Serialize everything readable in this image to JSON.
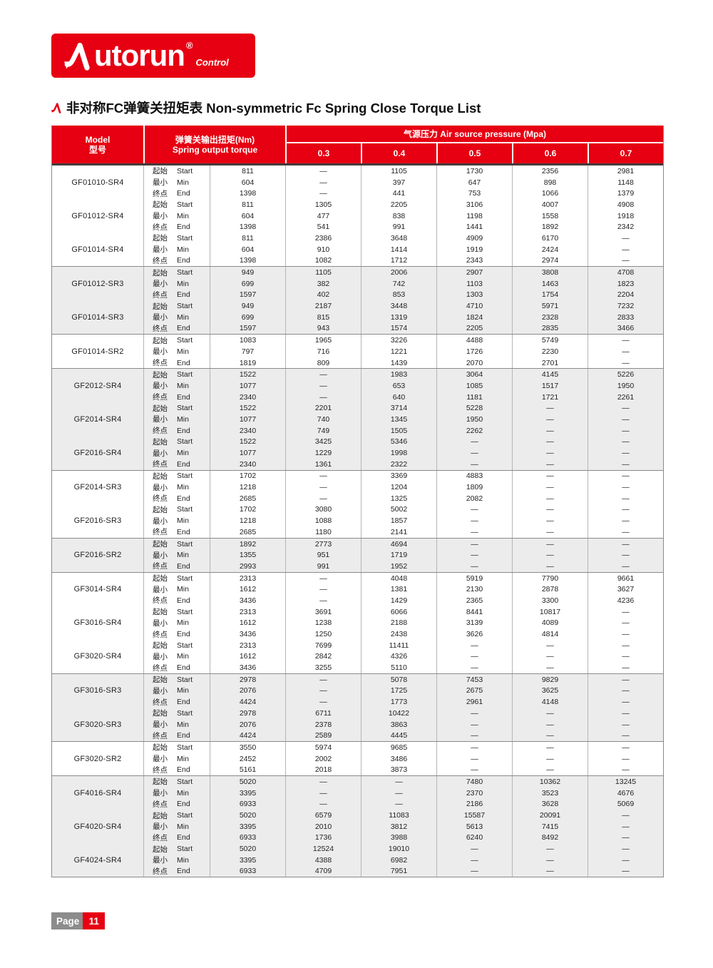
{
  "colors": {
    "brand_red": "#e60012",
    "section_shade": "#ececec",
    "footer_gray": "#8c8c8c"
  },
  "logo": {
    "brand": "Autorun",
    "brand_rest": "utorun",
    "registered": "®",
    "sub": "Control"
  },
  "title": {
    "text": "非对称FC弹簧关扭矩表 Non-symmetric Fc Spring Close Torque List"
  },
  "table": {
    "header": {
      "model_en": "Model",
      "model_zh": "型号",
      "torque_zh": "弹簧关输出扭矩(Nm)",
      "torque_en": "Spring output torque",
      "pressure_title": "气源压力 Air source pressure (Mpa)",
      "pressure_values": [
        "0.3",
        "0.4",
        "0.5",
        "0.6",
        "0.7"
      ]
    },
    "row_labels": [
      {
        "zh": "起始",
        "en": "Start"
      },
      {
        "zh": "最小",
        "en": "Min"
      },
      {
        "zh": "终点",
        "en": "End"
      }
    ],
    "sections": [
      {
        "shaded": false,
        "models": [
          {
            "name": "GF01010-SR4",
            "rows": [
              {
                "torque": "811",
                "values": [
                  "—",
                  "1105",
                  "1730",
                  "2356",
                  "2981"
                ]
              },
              {
                "torque": "604",
                "values": [
                  "—",
                  "397",
                  "647",
                  "898",
                  "1148"
                ]
              },
              {
                "torque": "1398",
                "values": [
                  "—",
                  "441",
                  "753",
                  "1066",
                  "1379"
                ]
              }
            ]
          },
          {
            "name": "GF01012-SR4",
            "rows": [
              {
                "torque": "811",
                "values": [
                  "1305",
                  "2205",
                  "3106",
                  "4007",
                  "4908"
                ]
              },
              {
                "torque": "604",
                "values": [
                  "477",
                  "838",
                  "1198",
                  "1558",
                  "1918"
                ]
              },
              {
                "torque": "1398",
                "values": [
                  "541",
                  "991",
                  "1441",
                  "1892",
                  "2342"
                ]
              }
            ]
          },
          {
            "name": "GF01014-SR4",
            "rows": [
              {
                "torque": "811",
                "values": [
                  "2386",
                  "3648",
                  "4909",
                  "6170",
                  "—"
                ]
              },
              {
                "torque": "604",
                "values": [
                  "910",
                  "1414",
                  "1919",
                  "2424",
                  "—"
                ]
              },
              {
                "torque": "1398",
                "values": [
                  "1082",
                  "1712",
                  "2343",
                  "2974",
                  "—"
                ]
              }
            ]
          }
        ]
      },
      {
        "shaded": true,
        "models": [
          {
            "name": "GF01012-SR3",
            "rows": [
              {
                "torque": "949",
                "values": [
                  "1105",
                  "2006",
                  "2907",
                  "3808",
                  "4708"
                ]
              },
              {
                "torque": "699",
                "values": [
                  "382",
                  "742",
                  "1103",
                  "1463",
                  "1823"
                ]
              },
              {
                "torque": "1597",
                "values": [
                  "402",
                  "853",
                  "1303",
                  "1754",
                  "2204"
                ]
              }
            ]
          },
          {
            "name": "GF01014-SR3",
            "rows": [
              {
                "torque": "949",
                "values": [
                  "2187",
                  "3448",
                  "4710",
                  "5971",
                  "7232"
                ]
              },
              {
                "torque": "699",
                "values": [
                  "815",
                  "1319",
                  "1824",
                  "2328",
                  "2833"
                ]
              },
              {
                "torque": "1597",
                "values": [
                  "943",
                  "1574",
                  "2205",
                  "2835",
                  "3466"
                ]
              }
            ]
          }
        ]
      },
      {
        "shaded": false,
        "models": [
          {
            "name": "GF01014-SR2",
            "rows": [
              {
                "torque": "1083",
                "values": [
                  "1965",
                  "3226",
                  "4488",
                  "5749",
                  "—"
                ]
              },
              {
                "torque": "797",
                "values": [
                  "716",
                  "1221",
                  "1726",
                  "2230",
                  "—"
                ]
              },
              {
                "torque": "1819",
                "values": [
                  "809",
                  "1439",
                  "2070",
                  "2701",
                  "—"
                ]
              }
            ]
          }
        ]
      },
      {
        "shaded": true,
        "models": [
          {
            "name": "GF2012-SR4",
            "rows": [
              {
                "torque": "1522",
                "values": [
                  "—",
                  "1983",
                  "3064",
                  "4145",
                  "5226"
                ]
              },
              {
                "torque": "1077",
                "values": [
                  "—",
                  "653",
                  "1085",
                  "1517",
                  "1950"
                ]
              },
              {
                "torque": "2340",
                "values": [
                  "—",
                  "640",
                  "1181",
                  "1721",
                  "2261"
                ]
              }
            ]
          },
          {
            "name": "GF2014-SR4",
            "rows": [
              {
                "torque": "1522",
                "values": [
                  "2201",
                  "3714",
                  "5228",
                  "—",
                  "—"
                ]
              },
              {
                "torque": "1077",
                "values": [
                  "740",
                  "1345",
                  "1950",
                  "—",
                  "—"
                ]
              },
              {
                "torque": "2340",
                "values": [
                  "749",
                  "1505",
                  "2262",
                  "—",
                  "—"
                ]
              }
            ]
          },
          {
            "name": "GF2016-SR4",
            "rows": [
              {
                "torque": "1522",
                "values": [
                  "3425",
                  "5346",
                  "—",
                  "—",
                  "—"
                ]
              },
              {
                "torque": "1077",
                "values": [
                  "1229",
                  "1998",
                  "—",
                  "—",
                  "—"
                ]
              },
              {
                "torque": "2340",
                "values": [
                  "1361",
                  "2322",
                  "—",
                  "—",
                  "—"
                ]
              }
            ]
          }
        ]
      },
      {
        "shaded": false,
        "models": [
          {
            "name": "GF2014-SR3",
            "rows": [
              {
                "torque": "1702",
                "values": [
                  "—",
                  "3369",
                  "4883",
                  "—",
                  "—"
                ]
              },
              {
                "torque": "1218",
                "values": [
                  "—",
                  "1204",
                  "1809",
                  "—",
                  "—"
                ]
              },
              {
                "torque": "2685",
                "values": [
                  "—",
                  "1325",
                  "2082",
                  "—",
                  "—"
                ]
              }
            ]
          },
          {
            "name": "GF2016-SR3",
            "rows": [
              {
                "torque": "1702",
                "values": [
                  "3080",
                  "5002",
                  "—",
                  "—",
                  "—"
                ]
              },
              {
                "torque": "1218",
                "values": [
                  "1088",
                  "1857",
                  "—",
                  "—",
                  "—"
                ]
              },
              {
                "torque": "2685",
                "values": [
                  "1180",
                  "2141",
                  "—",
                  "—",
                  "—"
                ]
              }
            ]
          }
        ]
      },
      {
        "shaded": true,
        "models": [
          {
            "name": "GF2016-SR2",
            "rows": [
              {
                "torque": "1892",
                "values": [
                  "2773",
                  "4694",
                  "—",
                  "—",
                  "—"
                ]
              },
              {
                "torque": "1355",
                "values": [
                  "951",
                  "1719",
                  "—",
                  "—",
                  "—"
                ]
              },
              {
                "torque": "2993",
                "values": [
                  "991",
                  "1952",
                  "—",
                  "—",
                  "—"
                ]
              }
            ]
          }
        ]
      },
      {
        "shaded": false,
        "models": [
          {
            "name": "GF3014-SR4",
            "rows": [
              {
                "torque": "2313",
                "values": [
                  "—",
                  "4048",
                  "5919",
                  "7790",
                  "9661"
                ]
              },
              {
                "torque": "1612",
                "values": [
                  "—",
                  "1381",
                  "2130",
                  "2878",
                  "3627"
                ]
              },
              {
                "torque": "3436",
                "values": [
                  "—",
                  "1429",
                  "2365",
                  "3300",
                  "4236"
                ]
              }
            ]
          },
          {
            "name": "GF3016-SR4",
            "rows": [
              {
                "torque": "2313",
                "values": [
                  "3691",
                  "6066",
                  "8441",
                  "10817",
                  "—"
                ]
              },
              {
                "torque": "1612",
                "values": [
                  "1238",
                  "2188",
                  "3139",
                  "4089",
                  "—"
                ]
              },
              {
                "torque": "3436",
                "values": [
                  "1250",
                  "2438",
                  "3626",
                  "4814",
                  "—"
                ]
              }
            ]
          },
          {
            "name": "GF3020-SR4",
            "rows": [
              {
                "torque": "2313",
                "values": [
                  "7699",
                  "11411",
                  "—",
                  "—",
                  "—"
                ]
              },
              {
                "torque": "1612",
                "values": [
                  "2842",
                  "4326",
                  "—",
                  "—",
                  "—"
                ]
              },
              {
                "torque": "3436",
                "values": [
                  "3255",
                  "5110",
                  "—",
                  "—",
                  "—"
                ]
              }
            ]
          }
        ]
      },
      {
        "shaded": true,
        "models": [
          {
            "name": "GF3016-SR3",
            "rows": [
              {
                "torque": "2978",
                "values": [
                  "—",
                  "5078",
                  "7453",
                  "9829",
                  "—"
                ]
              },
              {
                "torque": "2076",
                "values": [
                  "—",
                  "1725",
                  "2675",
                  "3625",
                  "—"
                ]
              },
              {
                "torque": "4424",
                "values": [
                  "—",
                  "1773",
                  "2961",
                  "4148",
                  "—"
                ]
              }
            ]
          },
          {
            "name": "GF3020-SR3",
            "rows": [
              {
                "torque": "2978",
                "values": [
                  "6711",
                  "10422",
                  "—",
                  "—",
                  "—"
                ]
              },
              {
                "torque": "2076",
                "values": [
                  "2378",
                  "3863",
                  "—",
                  "—",
                  "—"
                ]
              },
              {
                "torque": "4424",
                "values": [
                  "2589",
                  "4445",
                  "—",
                  "—",
                  "—"
                ]
              }
            ]
          }
        ]
      },
      {
        "shaded": false,
        "models": [
          {
            "name": "GF3020-SR2",
            "rows": [
              {
                "torque": "3550",
                "values": [
                  "5974",
                  "9685",
                  "—",
                  "—",
                  "—"
                ]
              },
              {
                "torque": "2452",
                "values": [
                  "2002",
                  "3486",
                  "—",
                  "—",
                  "—"
                ]
              },
              {
                "torque": "5161",
                "values": [
                  "2018",
                  "3873",
                  "—",
                  "—",
                  "—"
                ]
              }
            ]
          }
        ]
      },
      {
        "shaded": true,
        "models": [
          {
            "name": "GF4016-SR4",
            "rows": [
              {
                "torque": "5020",
                "values": [
                  "—",
                  "—",
                  "7480",
                  "10362",
                  "13245"
                ]
              },
              {
                "torque": "3395",
                "values": [
                  "—",
                  "—",
                  "2370",
                  "3523",
                  "4676"
                ]
              },
              {
                "torque": "6933",
                "values": [
                  "—",
                  "—",
                  "2186",
                  "3628",
                  "5069"
                ]
              }
            ]
          },
          {
            "name": "GF4020-SR4",
            "rows": [
              {
                "torque": "5020",
                "values": [
                  "6579",
                  "11083",
                  "15587",
                  "20091",
                  "—"
                ]
              },
              {
                "torque": "3395",
                "values": [
                  "2010",
                  "3812",
                  "5613",
                  "7415",
                  "—"
                ]
              },
              {
                "torque": "6933",
                "values": [
                  "1736",
                  "3988",
                  "6240",
                  "8492",
                  "—"
                ]
              }
            ]
          },
          {
            "name": "GF4024-SR4",
            "rows": [
              {
                "torque": "5020",
                "values": [
                  "12524",
                  "19010",
                  "—",
                  "—",
                  "—"
                ]
              },
              {
                "torque": "3395",
                "values": [
                  "4388",
                  "6982",
                  "—",
                  "—",
                  "—"
                ]
              },
              {
                "torque": "6933",
                "values": [
                  "4709",
                  "7951",
                  "—",
                  "—",
                  "—"
                ]
              }
            ]
          }
        ]
      }
    ]
  },
  "footer": {
    "page_label": "Page",
    "page_number": "11"
  }
}
